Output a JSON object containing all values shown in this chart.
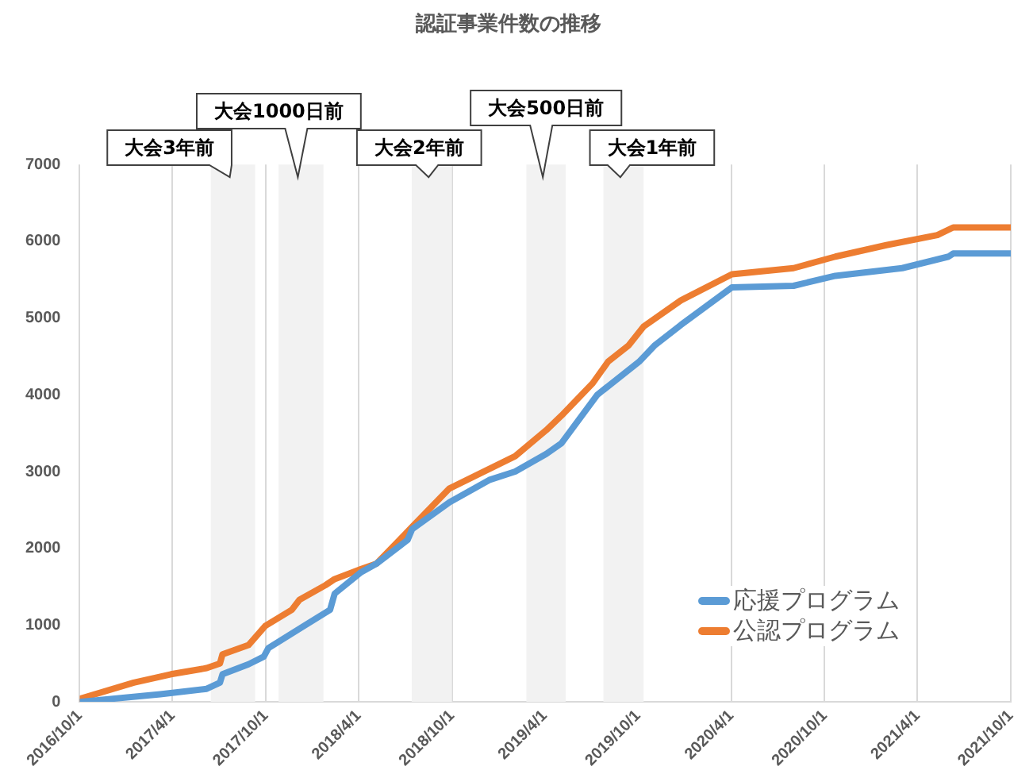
{
  "chart_data": {
    "type": "line",
    "title": "認証事業件数の推移",
    "xlim": [
      "2016-10-01",
      "2021-10-01"
    ],
    "xticks": [
      {
        "value": "2016-10-01",
        "label": "2016/10/1"
      },
      {
        "value": "2017-04-01",
        "label": "2017/4/1"
      },
      {
        "value": "2017-10-01",
        "label": "2017/10/1"
      },
      {
        "value": "2018-04-01",
        "label": "2018/4/1"
      },
      {
        "value": "2018-10-01",
        "label": "2018/10/1"
      },
      {
        "value": "2019-04-01",
        "label": "2019/4/1"
      },
      {
        "value": "2019-10-01",
        "label": "2019/10/1"
      },
      {
        "value": "2020-04-01",
        "label": "2020/4/1"
      },
      {
        "value": "2020-10-01",
        "label": "2020/10/1"
      },
      {
        "value": "2021-04-01",
        "label": "2021/4/1"
      },
      {
        "value": "2021-10-01",
        "label": "2021/10/1"
      }
    ],
    "ylim": [
      0,
      7000
    ],
    "yticks": [
      0,
      1000,
      2000,
      3000,
      4000,
      5000,
      6000,
      7000
    ],
    "grid": "x",
    "legend": "bottom right",
    "line_style": "solid",
    "marker": "none",
    "bands": [
      {
        "axis": "x",
        "from": "2017-06-15",
        "to": "2017-09-10",
        "label": "大会3年前",
        "color": "#f2f2f2"
      },
      {
        "axis": "x",
        "from": "2017-10-26",
        "to": "2018-01-22",
        "label": "大会1000日前",
        "color": "#f2f2f2"
      },
      {
        "axis": "x",
        "from": "2018-07-14",
        "to": "2018-10-01",
        "label": "大会2年前",
        "color": "#f2f2f2"
      },
      {
        "axis": "x",
        "from": "2019-02-24",
        "to": "2019-05-12",
        "label": "大会500日前",
        "color": "#f2f2f2"
      },
      {
        "axis": "x",
        "from": "2019-07-25",
        "to": "2019-10-12",
        "label": "大会1年前",
        "color": "#f2f2f2"
      }
    ],
    "series": [
      {
        "name": "応援プログラム",
        "color": "#5b9bd5",
        "x": [
          "2016-10-01",
          "2017-03-08",
          "2017-06-07",
          "2017-07-03",
          "2017-07-08",
          "2017-08-28",
          "2017-09-27",
          "2017-10-06",
          "2017-12-15",
          "2018-02-04",
          "2018-02-13",
          "2018-04-06",
          "2018-05-06",
          "2018-07-06",
          "2018-07-15",
          "2018-09-26",
          "2018-12-13",
          "2019-02-02",
          "2019-04-04",
          "2019-05-04",
          "2019-07-13",
          "2019-10-03",
          "2019-11-02",
          "2019-12-24",
          "2020-04-02",
          "2020-08-01",
          "2020-10-22",
          "2021-03-02",
          "2021-06-01",
          "2021-06-10",
          "2021-10-01"
        ],
        "values": [
          0,
          100,
          170,
          250,
          360,
          490,
          590,
          700,
          990,
          1200,
          1410,
          1690,
          1800,
          2110,
          2250,
          2600,
          2890,
          3000,
          3230,
          3370,
          4000,
          4430,
          4640,
          4910,
          5400,
          5420,
          5550,
          5650,
          5800,
          5840,
          5840
        ]
      },
      {
        "name": "公認プログラム",
        "color": "#ed7d31",
        "x": [
          "2016-10-01",
          "2017-01-15",
          "2017-03-29",
          "2017-06-07",
          "2017-07-03",
          "2017-07-08",
          "2017-08-28",
          "2017-09-30",
          "2017-11-21",
          "2017-12-06",
          "2018-01-26",
          "2018-02-13",
          "2018-04-06",
          "2018-05-06",
          "2018-07-15",
          "2018-09-26",
          "2019-02-02",
          "2019-04-04",
          "2019-05-04",
          "2019-07-04",
          "2019-08-03",
          "2019-09-12",
          "2019-10-12",
          "2019-12-24",
          "2020-04-02",
          "2020-08-01",
          "2020-10-22",
          "2021-01-30",
          "2021-05-10",
          "2021-06-10",
          "2021-10-01"
        ],
        "values": [
          40,
          250,
          360,
          440,
          500,
          620,
          740,
          990,
          1200,
          1330,
          1520,
          1600,
          1730,
          1800,
          2280,
          2780,
          3200,
          3540,
          3730,
          4150,
          4430,
          4640,
          4890,
          5230,
          5570,
          5650,
          5800,
          5950,
          6080,
          6180,
          6180
        ]
      }
    ]
  }
}
